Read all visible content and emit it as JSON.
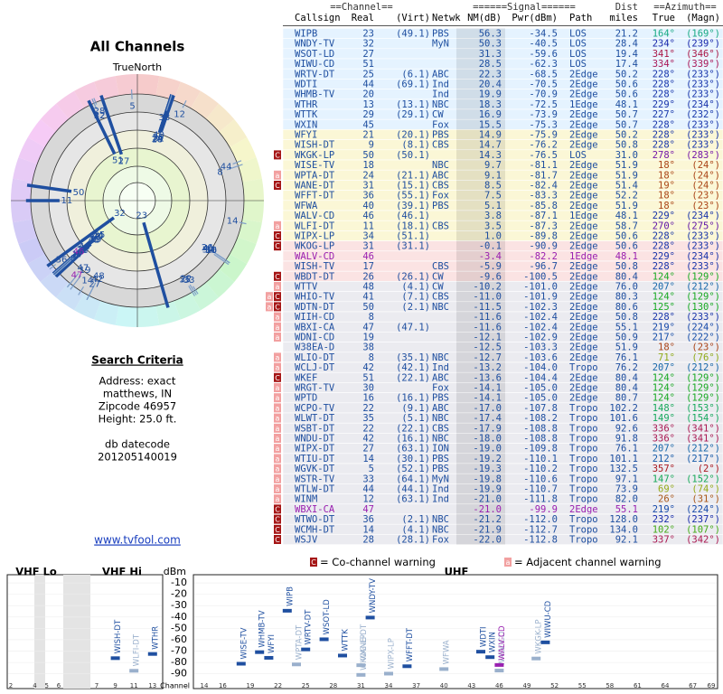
{
  "title": "All Channels",
  "north_label": "TrueNorth",
  "search": {
    "title": "Search Criteria",
    "lines": [
      "Address: exact",
      "matthews, IN",
      "Zipcode 46957",
      "Height: 25.0 ft."
    ],
    "datecode_label": "db datecode",
    "datecode": "201205140019"
  },
  "link": "www.tvfool.com",
  "table": {
    "group_headers": [
      "==Channel==",
      "======Signal======",
      "Dist",
      "==Azimuth=="
    ],
    "columns": [
      "Callsign",
      "Real",
      "(Virt)",
      "Netwk",
      "NM(dB)",
      "Pwr(dBm)",
      "Path",
      "miles",
      "True",
      "(Magn)"
    ],
    "rows": [
      {
        "cells": [
          "WIPB",
          23,
          "(49.1)",
          "PBS",
          "56.3",
          "-34.5",
          "LOS",
          "21.2",
          "164°",
          "(169°)"
        ]
      },
      {
        "cells": [
          "WNDY-TV",
          32,
          null,
          "MyN",
          "50.3",
          "-40.5",
          "LOS",
          "28.4",
          "234°",
          "(239°)"
        ]
      },
      {
        "cells": [
          "WSOT-LD",
          27,
          null,
          null,
          "31.3",
          "-59.6",
          "LOS",
          "19.4",
          "341°",
          "(346°)"
        ]
      },
      {
        "cells": [
          "WIWU-CD",
          51,
          null,
          null,
          "28.5",
          "-62.3",
          "LOS",
          "17.4",
          "334°",
          "(339°)"
        ]
      },
      {
        "cells": [
          "WRTV-DT",
          25,
          "(6.1)",
          "ABC",
          "22.3",
          "-68.5",
          "2Edge",
          "50.2",
          "228°",
          "(233°)"
        ]
      },
      {
        "cells": [
          "WDTI",
          44,
          "(69.1)",
          "Ind",
          "20.4",
          "-70.5",
          "2Edge",
          "50.6",
          "228°",
          "(233°)"
        ]
      },
      {
        "cells": [
          "WHMB-TV",
          20,
          null,
          "Ind",
          "19.9",
          "-70.9",
          "2Edge",
          "50.6",
          "228°",
          "(233°)"
        ]
      },
      {
        "cells": [
          "WTHR",
          13,
          "(13.1)",
          "NBC",
          "18.3",
          "-72.5",
          "1Edge",
          "48.1",
          "229°",
          "(234°)"
        ]
      },
      {
        "cells": [
          "WTTK",
          29,
          "(29.1)",
          "CW",
          "16.9",
          "-73.9",
          "2Edge",
          "50.7",
          "227°",
          "(232°)"
        ]
      },
      {
        "cells": [
          "WXIN",
          45,
          null,
          "Fox",
          "15.5",
          "-75.3",
          "2Edge",
          "50.7",
          "228°",
          "(233°)"
        ]
      },
      {
        "cells": [
          "WFYI",
          21,
          "(20.1)",
          "PBS",
          "14.9",
          "-75.9",
          "2Edge",
          "50.2",
          "228°",
          "(233°)"
        ]
      },
      {
        "cells": [
          "WISH-DT",
          9,
          "(8.1)",
          "CBS",
          "14.7",
          "-76.2",
          "2Edge",
          "50.8",
          "228°",
          "(233°)"
        ]
      },
      {
        "warn": [
          "C"
        ],
        "cells": [
          "WKGK-LP",
          50,
          "(50.1)",
          null,
          "14.3",
          "-76.5",
          "LOS",
          "31.0",
          "278°",
          "(283°)"
        ]
      },
      {
        "cells": [
          "WISE-TV",
          18,
          null,
          "NBC",
          "9.7",
          "-81.1",
          "2Edge",
          "51.9",
          "18°",
          "(24°)"
        ]
      },
      {
        "warn": [
          "a"
        ],
        "cells": [
          "WPTA-DT",
          24,
          "(21.1)",
          "ABC",
          "9.1",
          "-81.7",
          "2Edge",
          "51.9",
          "18°",
          "(24°)"
        ]
      },
      {
        "warn": [
          "C"
        ],
        "cells": [
          "WANE-DT",
          31,
          "(15.1)",
          "CBS",
          "8.5",
          "-82.4",
          "2Edge",
          "51.4",
          "19°",
          "(24°)"
        ]
      },
      {
        "cells": [
          "WFFT-DT",
          36,
          "(55.1)",
          "Fox",
          "7.5",
          "-83.3",
          "2Edge",
          "52.2",
          "18°",
          "(23°)"
        ]
      },
      {
        "cells": [
          "WFWA",
          40,
          "(39.1)",
          "PBS",
          "5.1",
          "-85.8",
          "2Edge",
          "51.9",
          "18°",
          "(23°)"
        ]
      },
      {
        "cells": [
          "WALV-CD",
          46,
          "(46.1)",
          null,
          "3.8",
          "-87.1",
          "1Edge",
          "48.1",
          "229°",
          "(234°)"
        ]
      },
      {
        "warn": [
          "a"
        ],
        "cells": [
          "WLFI-DT",
          11,
          "(18.1)",
          "CBS",
          "3.5",
          "-87.3",
          "2Edge",
          "58.7",
          "270°",
          "(275°)"
        ]
      },
      {
        "warn": [
          "C"
        ],
        "cells": [
          "WIPX-LP",
          34,
          "(51.1)",
          null,
          "1.0",
          "-89.8",
          "2Edge",
          "50.6",
          "228°",
          "(233°)"
        ]
      },
      {
        "warn": [
          "C"
        ],
        "cells": [
          "WKOG-LP",
          31,
          "(31.1)",
          null,
          "-0.1",
          "-90.9",
          "2Edge",
          "50.6",
          "228°",
          "(233°)"
        ]
      },
      {
        "color": "#9a20b0",
        "cells": [
          "WALV-CD",
          46,
          null,
          null,
          "-3.4",
          "-82.2",
          "1Edge",
          "48.1",
          "229°",
          "(234°)"
        ]
      },
      {
        "cells": [
          "WISH-TV",
          17,
          null,
          "CBS",
          "-5.9",
          "-96.7",
          "2Edge",
          "50.8",
          "228°",
          "(233°)"
        ]
      },
      {
        "warn": [
          "C"
        ],
        "cells": [
          "WBDT-DT",
          26,
          "(26.1)",
          "CW",
          "-9.6",
          "-100.5",
          "2Edge",
          "80.4",
          "124°",
          "(129°)"
        ]
      },
      {
        "warn": [
          "a"
        ],
        "cells": [
          "WTTV",
          48,
          "(4.1)",
          "CW",
          "-10.2",
          "-101.0",
          "2Edge",
          "76.0",
          "207°",
          "(212°)"
        ]
      },
      {
        "warn": [
          "a",
          "C"
        ],
        "cells": [
          "WHIO-TV",
          41,
          "(7.1)",
          "CBS",
          "-11.0",
          "-101.9",
          "2Edge",
          "80.3",
          "124°",
          "(129°)"
        ]
      },
      {
        "warn": [
          "a",
          "C"
        ],
        "cells": [
          "WDTN-DT",
          50,
          "(2.1)",
          "NBC",
          "-11.5",
          "-102.3",
          "2Edge",
          "80.6",
          "125°",
          "(130°)"
        ]
      },
      {
        "warn": [
          "a"
        ],
        "cells": [
          "WIIH-CD",
          8,
          null,
          null,
          "-11.6",
          "-102.4",
          "2Edge",
          "50.8",
          "228°",
          "(233°)"
        ]
      },
      {
        "warn": [
          "a"
        ],
        "cells": [
          "WBXI-CA",
          47,
          "(47.1)",
          null,
          "-11.6",
          "-102.4",
          "2Edge",
          "55.1",
          "219°",
          "(224°)"
        ]
      },
      {
        "warn": [
          "a"
        ],
        "cells": [
          "WDNI-CD",
          19,
          null,
          null,
          "-12.1",
          "-102.9",
          "2Edge",
          "50.9",
          "217°",
          "(222°)"
        ]
      },
      {
        "cells": [
          "W38EA-D",
          38,
          null,
          null,
          "-12.5",
          "-103.3",
          "2Edge",
          "51.9",
          "18°",
          "(23°)"
        ]
      },
      {
        "warn": [
          "a"
        ],
        "cells": [
          "WLIO-DT",
          8,
          "(35.1)",
          "NBC",
          "-12.7",
          "-103.6",
          "2Edge",
          "76.1",
          "71°",
          "(76°)"
        ]
      },
      {
        "warn": [
          "a"
        ],
        "cells": [
          "WCLJ-DT",
          42,
          "(42.1)",
          "Ind",
          "-13.2",
          "-104.0",
          "Tropo",
          "76.2",
          "207°",
          "(212°)"
        ]
      },
      {
        "warn": [
          "C"
        ],
        "cells": [
          "WKEF",
          51,
          "(22.1)",
          "ABC",
          "-13.6",
          "-104.4",
          "2Edge",
          "80.4",
          "124°",
          "(129°)"
        ]
      },
      {
        "warn": [
          "a"
        ],
        "cells": [
          "WRGT-TV",
          30,
          null,
          "Fox",
          "-14.1",
          "-105.0",
          "2Edge",
          "80.4",
          "124°",
          "(129°)"
        ]
      },
      {
        "warn": [
          "a"
        ],
        "cells": [
          "WPTD",
          16,
          "(16.1)",
          "PBS",
          "-14.1",
          "-105.0",
          "2Edge",
          "80.7",
          "124°",
          "(129°)"
        ]
      },
      {
        "warn": [
          "a"
        ],
        "cells": [
          "WCPO-TV",
          22,
          "(9.1)",
          "ABC",
          "-17.0",
          "-107.8",
          "Tropo",
          "102.2",
          "148°",
          "(153°)"
        ]
      },
      {
        "warn": [
          "a"
        ],
        "cells": [
          "WLWT-DT",
          35,
          "(5.1)",
          "NBC",
          "-17.4",
          "-108.2",
          "Tropo",
          "101.6",
          "149°",
          "(154°)"
        ]
      },
      {
        "warn": [
          "a"
        ],
        "cells": [
          "WSBT-DT",
          22,
          "(22.1)",
          "CBS",
          "-17.9",
          "-108.8",
          "Tropo",
          "92.6",
          "336°",
          "(341°)"
        ]
      },
      {
        "warn": [
          "a"
        ],
        "cells": [
          "WNDU-DT",
          42,
          "(16.1)",
          "NBC",
          "-18.0",
          "-108.8",
          "Tropo",
          "91.8",
          "336°",
          "(341°)"
        ]
      },
      {
        "warn": [
          "a"
        ],
        "cells": [
          "WIPX-DT",
          27,
          "(63.1)",
          "ION",
          "-19.0",
          "-109.8",
          "Tropo",
          "76.1",
          "207°",
          "(212°)"
        ]
      },
      {
        "warn": [
          "a"
        ],
        "cells": [
          "WTIU-DT",
          14,
          "(30.1)",
          "PBS",
          "-19.2",
          "-110.1",
          "Tropo",
          "101.1",
          "212°",
          "(217°)"
        ]
      },
      {
        "warn": [
          "a"
        ],
        "cells": [
          "WGVK-DT",
          5,
          "(52.1)",
          "PBS",
          "-19.3",
          "-110.2",
          "Tropo",
          "132.5",
          "357°",
          "(2°)"
        ]
      },
      {
        "warn": [
          "a"
        ],
        "cells": [
          "WSTR-TV",
          33,
          "(64.1)",
          "MyN",
          "-19.8",
          "-110.6",
          "Tropo",
          "97.1",
          "147°",
          "(152°)"
        ]
      },
      {
        "warn": [
          "a"
        ],
        "cells": [
          "WTLW-DT",
          44,
          "(44.1)",
          "Ind",
          "-19.9",
          "-110.7",
          "Tropo",
          "73.9",
          "69°",
          "(74°)"
        ]
      },
      {
        "warn": [
          "a"
        ],
        "cells": [
          "WINM",
          12,
          "(63.1)",
          "Ind",
          "-21.0",
          "-111.8",
          "Tropo",
          "82.0",
          "26°",
          "(31°)"
        ]
      },
      {
        "warn": [
          "C"
        ],
        "color": "#9a20b0",
        "cells": [
          "WBXI-CA",
          47,
          null,
          null,
          "-21.0",
          "-99.9",
          "2Edge",
          "55.1",
          "219°",
          "(224°)"
        ]
      },
      {
        "warn": [
          "C"
        ],
        "cells": [
          "WTWO-DT",
          36,
          "(2.1)",
          "NBC",
          "-21.2",
          "-112.0",
          "Tropo",
          "128.0",
          "232°",
          "(237°)"
        ]
      },
      {
        "warn": [
          "C"
        ],
        "cells": [
          "WCMH-DT",
          14,
          "(4.1)",
          "NBC",
          "-21.9",
          "-112.7",
          "Tropo",
          "134.0",
          "102°",
          "(107°)"
        ]
      },
      {
        "warn": [
          "C"
        ],
        "cells": [
          "WSJV",
          28,
          "(28.1)",
          "Fox",
          "-22.0",
          "-112.8",
          "Tropo",
          "92.1",
          "337°",
          "(342°)"
        ]
      }
    ]
  },
  "legend": {
    "co": {
      "mark": "C",
      "label": "= Co-channel warning"
    },
    "adj": {
      "mark": "a",
      "label": "= Adjacent channel warning"
    }
  },
  "spectrum": {
    "panels": [
      "VHF Lo",
      "VHF Hi",
      "UHF"
    ],
    "y_label": "dBm",
    "x_label": "Channel",
    "ylim": [
      -95,
      -6
    ],
    "yticks": [
      -10,
      -20,
      -30,
      -40,
      -50,
      -60,
      -70,
      -80,
      -90
    ],
    "vhf_ticks": [
      2,
      4,
      5,
      6,
      7,
      9,
      11,
      13
    ],
    "uhf_ticks": [
      14,
      16,
      19,
      22,
      25,
      28,
      31,
      34,
      37,
      40,
      43,
      46,
      49,
      52,
      55,
      58,
      61,
      64,
      67,
      69
    ]
  }
}
